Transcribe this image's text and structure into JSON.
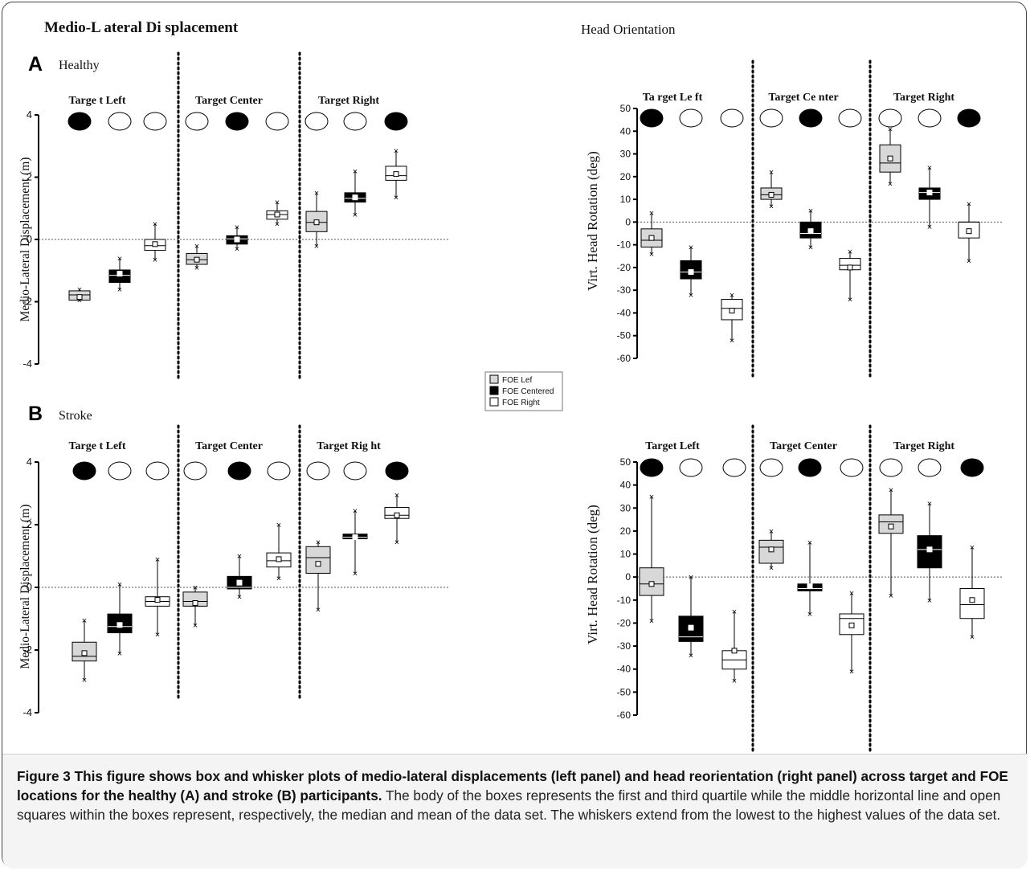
{
  "panels": {
    "left_title": "Medio-L ateral Di splacement",
    "right_title": "Head Orientation"
  },
  "rows": [
    {
      "letter": "A",
      "label": "Healthy"
    },
    {
      "letter": "B",
      "label": "Stroke"
    }
  ],
  "legend": [
    {
      "label": "FOE Lef",
      "color": "#d8d8d8"
    },
    {
      "label": "FOE Centered",
      "color": "#000000"
    },
    {
      "label": "FOE Right",
      "color": "#ffffff"
    }
  ],
  "caption": {
    "bold": "Figure 3 This figure shows box and whisker plots of medio-lateral displacements (left panel) and head reorientation (right panel) across target and FOE locations for the healthy (A) and stroke (B) participants.",
    "text": " The body of the boxes represents the first and third quartile while the middle horizontal line and open squares within the boxes represent, respectively, the median and mean of the data set. The whiskers extend from the lowest to the highest values of the data set."
  },
  "chart_data": [
    {
      "type": "box",
      "panel": "Healthy - Medio-Lateral Displacement",
      "ylabel": "Medio-Lateral Displacement (m)",
      "ylim": [
        -4,
        4
      ],
      "yticks": [
        -4,
        -2,
        0,
        2,
        4
      ],
      "groups": [
        "Targe t Left",
        "Target Center",
        "Target Right"
      ],
      "series": [
        "FOE Lef",
        "FOE Centered",
        "FOE Right"
      ],
      "boxes": [
        {
          "min": -1.95,
          "q1": -1.95,
          "median": -1.78,
          "q3": -1.65,
          "max": -1.6,
          "mean": -1.85
        },
        {
          "min": -1.6,
          "q1": -1.38,
          "median": -1.15,
          "q3": -0.98,
          "max": -0.6,
          "mean": -1.1
        },
        {
          "min": -0.65,
          "q1": -0.35,
          "median": -0.2,
          "q3": 0.0,
          "max": 0.5,
          "mean": -0.15
        },
        {
          "min": -0.9,
          "q1": -0.8,
          "median": -0.65,
          "q3": -0.45,
          "max": -0.2,
          "mean": -0.65
        },
        {
          "min": -0.3,
          "q1": -0.15,
          "median": 0.02,
          "q3": 0.12,
          "max": 0.4,
          "mean": 0.0
        },
        {
          "min": 0.5,
          "q1": 0.65,
          "median": 0.8,
          "q3": 0.92,
          "max": 1.2,
          "mean": 0.8
        },
        {
          "min": -0.2,
          "q1": 0.25,
          "median": 0.55,
          "q3": 0.9,
          "max": 1.5,
          "mean": 0.55
        },
        {
          "min": 0.8,
          "q1": 1.2,
          "median": 1.32,
          "q3": 1.5,
          "max": 2.2,
          "mean": 1.35
        },
        {
          "min": 1.35,
          "q1": 1.9,
          "median": 2.05,
          "q3": 2.35,
          "max": 2.85,
          "mean": 2.1
        }
      ]
    },
    {
      "type": "box",
      "panel": "Healthy - Head Orientation",
      "ylabel": "Virt. Head Rotation (deg)",
      "ylim": [
        -60,
        50
      ],
      "yticks": [
        -60,
        -50,
        -40,
        -30,
        -20,
        -10,
        0,
        10,
        20,
        30,
        40,
        50
      ],
      "groups": [
        "Ta rget Le ft",
        "Target Ce nter",
        "Target Right"
      ],
      "series": [
        "FOE Lef",
        "FOE Centered",
        "FOE Right"
      ],
      "boxes": [
        {
          "min": -14,
          "q1": -11,
          "median": -8,
          "q3": -3,
          "max": 4,
          "mean": -7
        },
        {
          "min": -32,
          "q1": -25,
          "median": -22,
          "q3": -17,
          "max": -11,
          "mean": -22
        },
        {
          "min": -52,
          "q1": -43,
          "median": -38,
          "q3": -34,
          "max": -32,
          "mean": -39
        },
        {
          "min": 7,
          "q1": 10,
          "median": 12,
          "q3": 15,
          "max": 22,
          "mean": 12
        },
        {
          "min": -11,
          "q1": -7,
          "median": -5,
          "q3": 0,
          "max": 5,
          "mean": -4
        },
        {
          "min": -34,
          "q1": -21,
          "median": -19,
          "q3": -16,
          "max": -13,
          "mean": -20
        },
        {
          "min": 17,
          "q1": 22,
          "median": 26,
          "q3": 34,
          "max": 41,
          "mean": 28
        },
        {
          "min": -2,
          "q1": 10,
          "median": 13,
          "q3": 15,
          "max": 24,
          "mean": 13
        },
        {
          "min": -17,
          "q1": -7,
          "median": 0,
          "q3": 0,
          "max": 8,
          "mean": -4
        }
      ]
    },
    {
      "type": "box",
      "panel": "Stroke - Medio-Lateral Displacement",
      "ylabel": "Medio-Lateral Displacement (m)",
      "ylim": [
        -4,
        4
      ],
      "yticks": [
        -4,
        -2,
        0,
        2,
        4
      ],
      "groups": [
        "Targe t Left",
        "Target Center",
        "Target Rig ht"
      ],
      "series": [
        "FOE Lef",
        "FOE Centered",
        "FOE Right"
      ],
      "boxes": [
        {
          "min": -2.95,
          "q1": -2.35,
          "median": -2.2,
          "q3": -1.75,
          "max": -1.05,
          "mean": -2.1
        },
        {
          "min": -2.1,
          "q1": -1.45,
          "median": -1.25,
          "q3": -0.85,
          "max": 0.1,
          "mean": -1.2
        },
        {
          "min": -1.5,
          "q1": -0.6,
          "median": -0.45,
          "q3": -0.3,
          "max": 0.9,
          "mean": -0.4
        },
        {
          "min": -1.2,
          "q1": -0.6,
          "median": -0.45,
          "q3": -0.15,
          "max": 0.0,
          "mean": -0.5
        },
        {
          "min": -0.3,
          "q1": -0.05,
          "median": 0.0,
          "q3": 0.35,
          "max": 1.0,
          "mean": 0.15
        },
        {
          "min": 0.3,
          "q1": 0.65,
          "median": 0.85,
          "q3": 1.1,
          "max": 2.0,
          "mean": 0.9
        },
        {
          "min": -0.7,
          "q1": 0.45,
          "median": 0.95,
          "q3": 1.3,
          "max": 1.45,
          "mean": 0.75
        },
        {
          "min": 0.45,
          "q1": 1.55,
          "median": 1.6,
          "q3": 1.7,
          "max": 2.45,
          "mean": 1.6
        },
        {
          "min": 1.45,
          "q1": 2.2,
          "median": 2.3,
          "q3": 2.55,
          "max": 2.95,
          "mean": 2.3
        }
      ]
    },
    {
      "type": "box",
      "panel": "Stroke - Head Orientation",
      "ylabel": "Virt. Head Rotation (deg)",
      "ylim": [
        -60,
        50
      ],
      "yticks": [
        -60,
        -50,
        -40,
        -30,
        -20,
        -10,
        0,
        10,
        20,
        30,
        40,
        50
      ],
      "groups": [
        "Target Left",
        "Target Center",
        "Target Right"
      ],
      "series": [
        "FOE Lef",
        "FOE Centered",
        "FOE Right"
      ],
      "boxes": [
        {
          "min": -19,
          "q1": -8,
          "median": -3,
          "q3": 4,
          "max": 35,
          "mean": -3
        },
        {
          "min": -34,
          "q1": -28,
          "median": -26,
          "q3": -17,
          "max": 0,
          "mean": -22
        },
        {
          "min": -45,
          "q1": -40,
          "median": -36,
          "q3": -32,
          "max": -15,
          "mean": -32
        },
        {
          "min": 4,
          "q1": 6,
          "median": 13,
          "q3": 16,
          "max": 20,
          "mean": 12
        },
        {
          "min": -16,
          "q1": -6,
          "median": -5,
          "q3": -3,
          "max": 15,
          "mean": -4
        },
        {
          "min": -41,
          "q1": -25,
          "median": -18,
          "q3": -16,
          "max": -7,
          "mean": -21
        },
        {
          "min": -8,
          "q1": 19,
          "median": 24,
          "q3": 27,
          "max": 38,
          "mean": 22
        },
        {
          "min": -10,
          "q1": 4,
          "median": 12,
          "q3": 18,
          "max": 32,
          "mean": 12
        },
        {
          "min": -26,
          "q1": -18,
          "median": -12,
          "q3": -5,
          "max": 13,
          "mean": -10
        }
      ]
    }
  ]
}
